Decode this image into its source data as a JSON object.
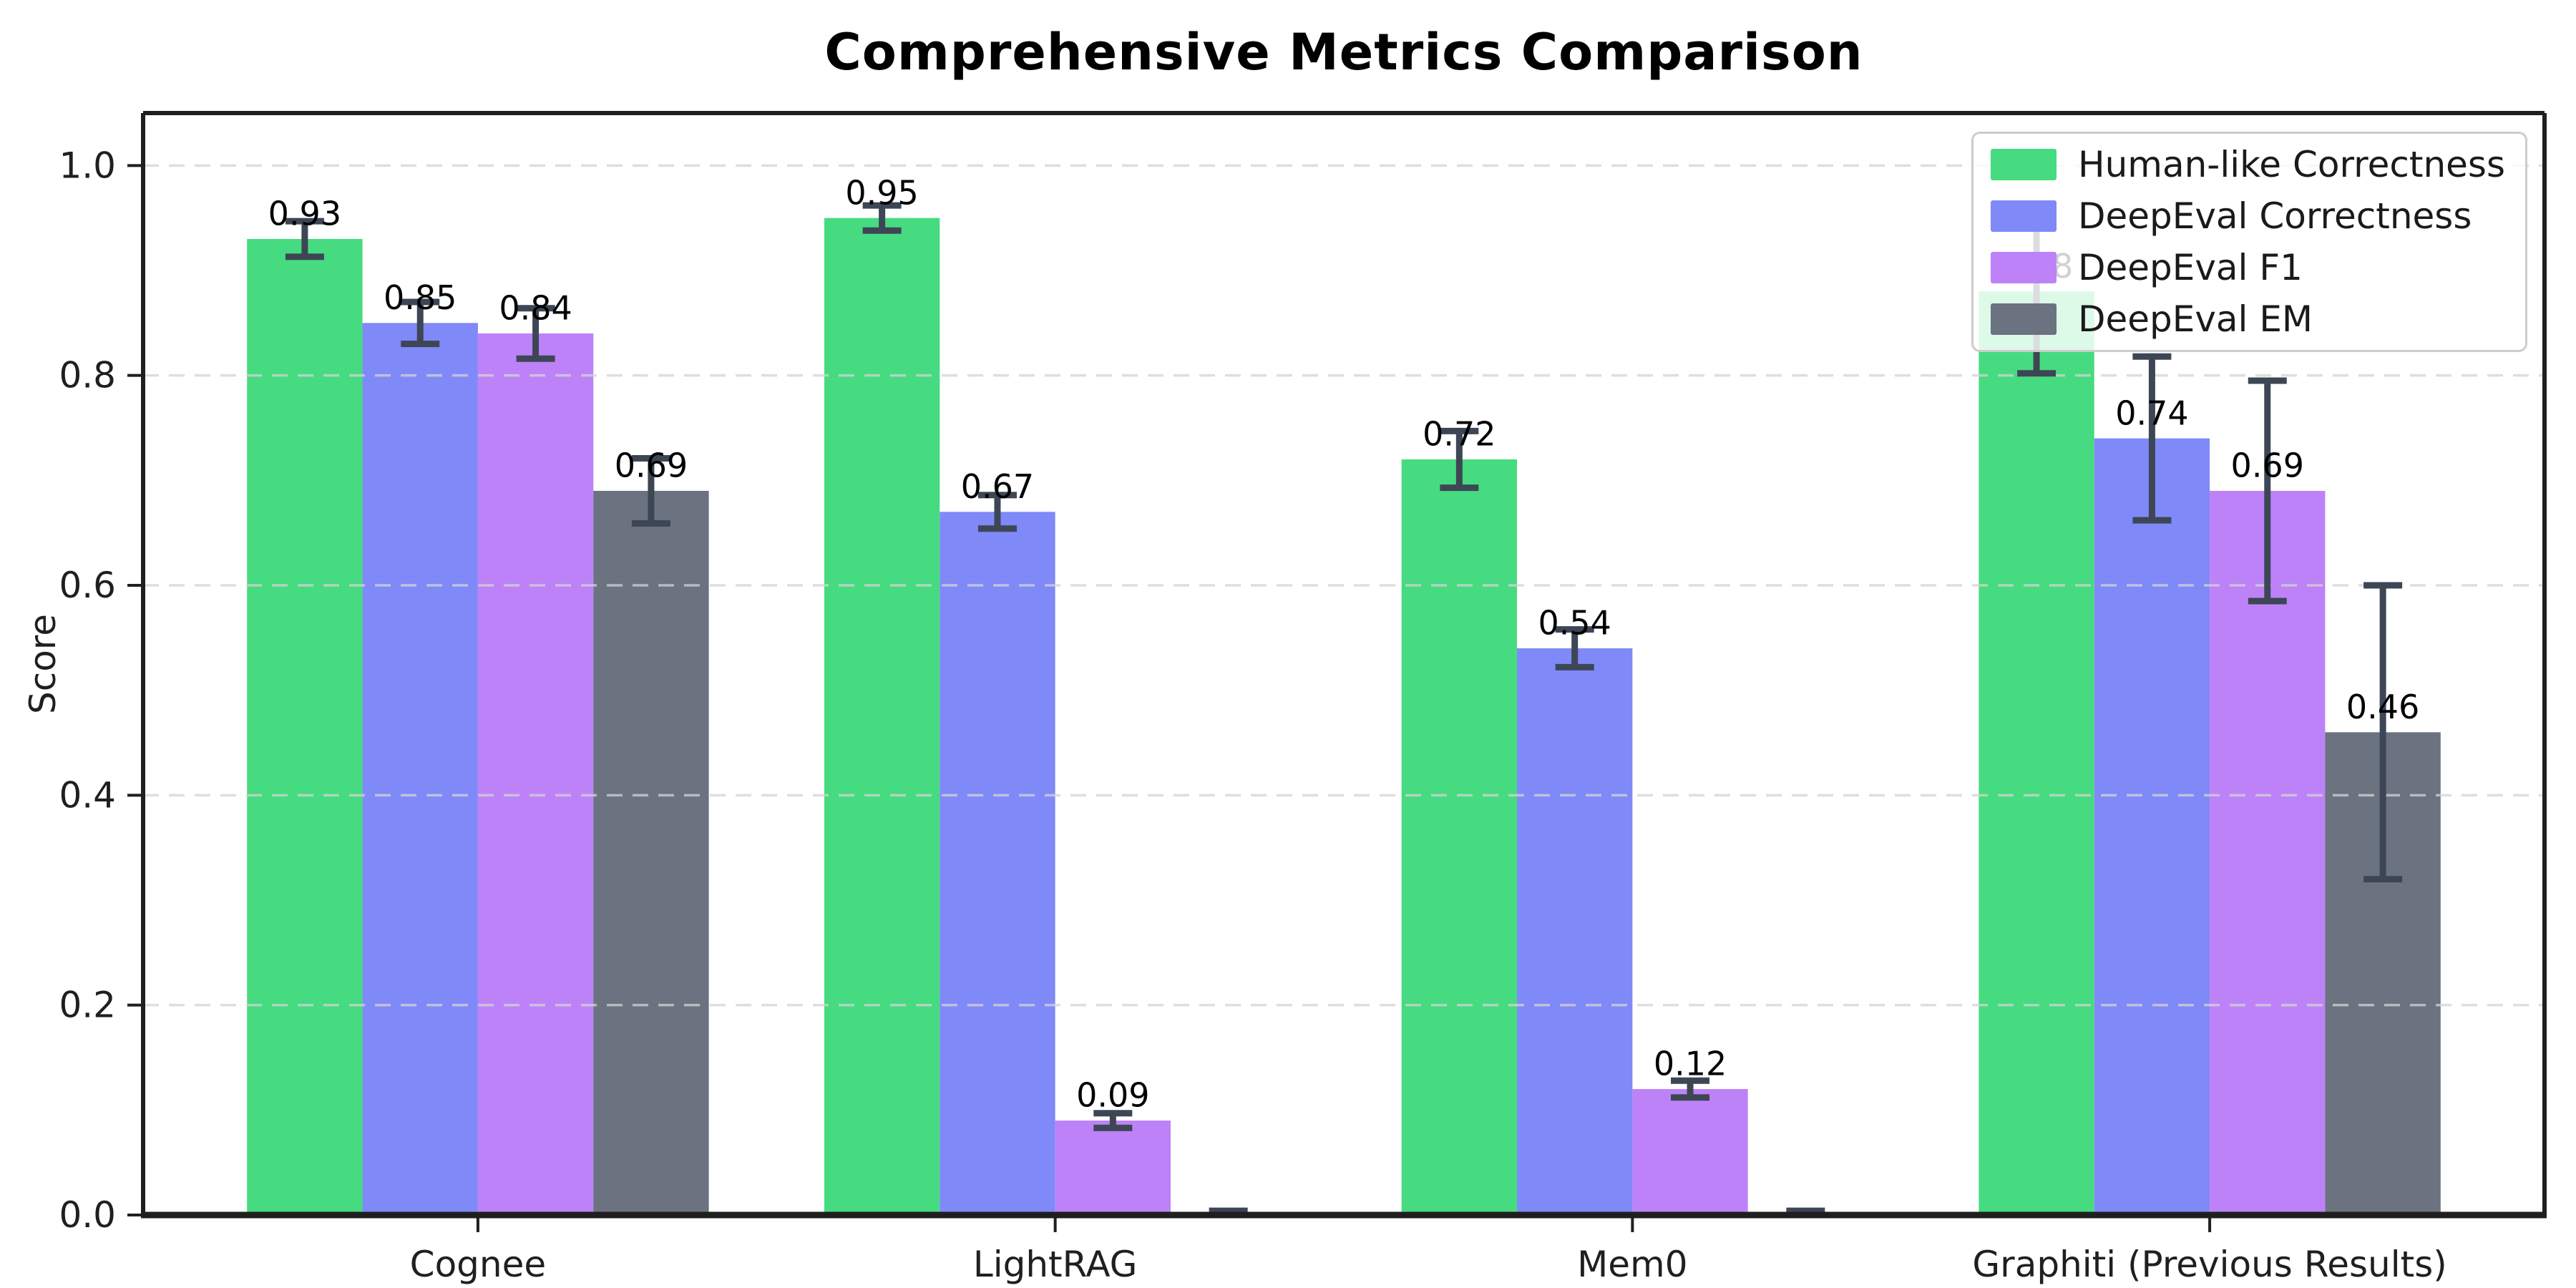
{
  "chart_data": {
    "type": "bar",
    "title": "Comprehensive Metrics Comparison",
    "ylabel": "Score",
    "categories": [
      "Cognee",
      "LightRAG",
      "Mem0",
      "Graphiti (Previous Results)"
    ],
    "series": [
      {
        "name": "Human-like Correctness",
        "color": "#46db80",
        "values": [
          0.93,
          0.95,
          0.72,
          0.88
        ],
        "errors": [
          0.017,
          0.012,
          0.027,
          0.078
        ],
        "labels": [
          "0.93",
          "0.95",
          "0.72",
          "0.88"
        ]
      },
      {
        "name": "DeepEval Correctness",
        "color": "#8089f8",
        "values": [
          0.85,
          0.67,
          0.54,
          0.74
        ],
        "errors": [
          0.02,
          0.016,
          0.018,
          0.078
        ],
        "labels": [
          "0.85",
          "0.67",
          "0.54",
          "0.74"
        ]
      },
      {
        "name": "DeepEval F1",
        "color": "#bd82f8",
        "values": [
          0.84,
          0.09,
          0.12,
          0.69
        ],
        "errors": [
          0.024,
          0.007,
          0.008,
          0.105
        ],
        "labels": [
          "0.84",
          "0.09",
          "0.12",
          "0.69"
        ]
      },
      {
        "name": "DeepEval EM",
        "color": "#6b7280",
        "values": [
          0.69,
          0.0,
          0.0,
          0.46
        ],
        "errors": [
          0.031,
          0.004,
          0.004,
          0.14
        ],
        "labels": [
          "0.69",
          null,
          null,
          "0.46"
        ]
      }
    ],
    "ylim": [
      0,
      1.05
    ],
    "yticks": [
      "0.0",
      "0.2",
      "0.4",
      "0.6",
      "0.8",
      "1.0"
    ],
    "grid": "horizontal-dashed",
    "legend_position": "upper-right",
    "colors": {
      "errorbar": "#3d4655",
      "grid": "#d4d4d4",
      "axis": "#1f1f1f"
    }
  }
}
